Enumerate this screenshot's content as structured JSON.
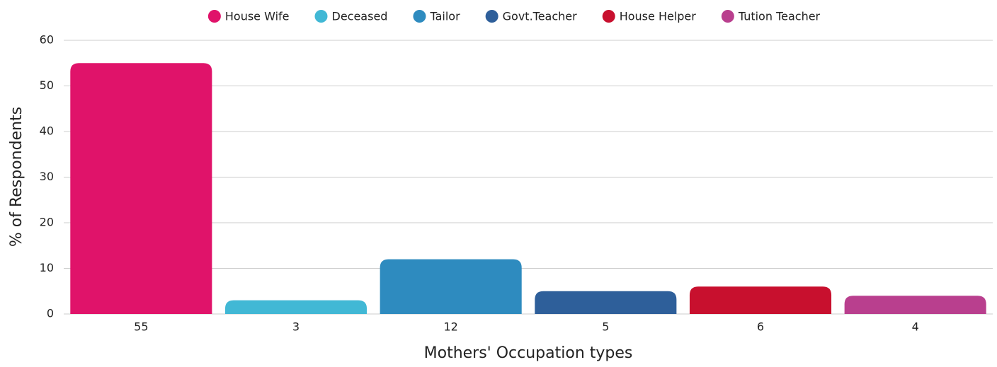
{
  "chart_data": {
    "type": "bar",
    "x_label": "Mothers' Occupation types",
    "y_label": "% of Respondents",
    "series": [
      {
        "name": "House Wife",
        "color": "#e0136a",
        "values": [
          55
        ]
      },
      {
        "name": "Deceased",
        "color": "#41b8d5",
        "values": [
          3
        ]
      },
      {
        "name": "Tailor",
        "color": "#2e8bbf",
        "values": [
          12
        ]
      },
      {
        "name": "Govt.Teacher",
        "color": "#2e5f9a",
        "values": [
          5
        ]
      },
      {
        "name": "House Helper",
        "color": "#c8102e",
        "values": [
          6
        ]
      },
      {
        "name": "Tution Teacher",
        "color": "#b93f8e",
        "values": [
          4
        ]
      }
    ],
    "ylim": [
      0,
      60
    ],
    "yticks": [
      0,
      10,
      20,
      30,
      40,
      50,
      60
    ],
    "grid": true,
    "legend": "top"
  }
}
